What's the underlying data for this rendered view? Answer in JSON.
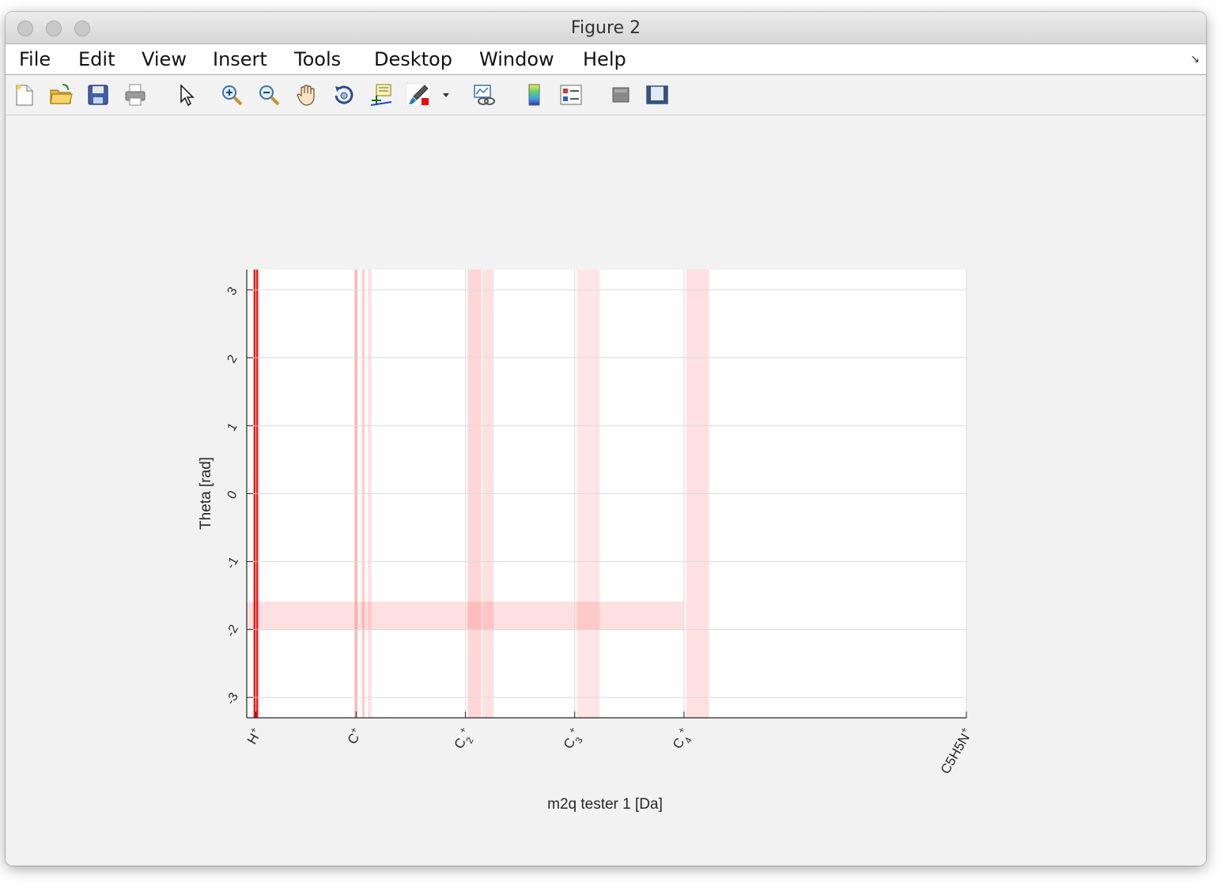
{
  "window": {
    "title": "Figure 2"
  },
  "menu": {
    "items": [
      "File",
      "Edit",
      "View",
      "Insert",
      "Tools",
      "Desktop",
      "Window",
      "Help"
    ]
  },
  "toolbar": {
    "icons": [
      "new-figure-icon",
      "open-file-icon",
      "save-icon",
      "print-icon",
      "edit-plot-arrow-icon",
      "zoom-in-icon",
      "zoom-out-icon",
      "pan-hand-icon",
      "rotate-3d-icon",
      "data-cursor-icon",
      "brush-icon",
      "brush-dropdown-icon",
      "link-plot-icon",
      "colorbar-icon",
      "legend-icon",
      "hide-plot-tools-icon",
      "show-plot-tools-icon"
    ]
  },
  "chart_data": {
    "type": "heatmap",
    "title": "",
    "xlabel": "m2q tester 1 [Da]",
    "ylabel": "Theta [rad]",
    "xlim": [
      0,
      79
    ],
    "ylim": [
      -3.3,
      3.3
    ],
    "grid": true,
    "xticks": [
      {
        "value": 1,
        "label": "H",
        "sub": "",
        "sup": "+"
      },
      {
        "value": 12,
        "label": "C",
        "sub": "",
        "sup": "+"
      },
      {
        "value": 24,
        "label": "C",
        "sub": "2",
        "sup": "+"
      },
      {
        "value": 36,
        "label": "C",
        "sub": "3",
        "sup": "+"
      },
      {
        "value": 48,
        "label": "C",
        "sub": "4",
        "sup": "+"
      },
      {
        "value": 79,
        "label": "C5H5N",
        "sub": "",
        "sup": "+"
      }
    ],
    "yticks": [
      "-3",
      "-2",
      "-1",
      "0",
      "1",
      "2",
      "3"
    ],
    "colormap": [
      "#ffffff",
      "#ff0000"
    ],
    "stripes": [
      {
        "x": 1,
        "width": 0.5,
        "intensity": 0.95
      },
      {
        "x": 12,
        "width": 0.3,
        "intensity": 0.35
      },
      {
        "x": 12.8,
        "width": 0.3,
        "intensity": 0.2
      },
      {
        "x": 13.5,
        "width": 0.4,
        "intensity": 0.12
      },
      {
        "x": 25,
        "width": 1.5,
        "intensity": 0.16
      },
      {
        "x": 26.5,
        "width": 1.2,
        "intensity": 0.12
      },
      {
        "x": 37.5,
        "width": 2.5,
        "intensity": 0.1
      },
      {
        "x": 49.5,
        "width": 2.5,
        "intensity": 0.12
      }
    ],
    "hband": {
      "y": -1.8,
      "x_from": 0,
      "x_to": 48,
      "intensity": 0.12
    }
  }
}
